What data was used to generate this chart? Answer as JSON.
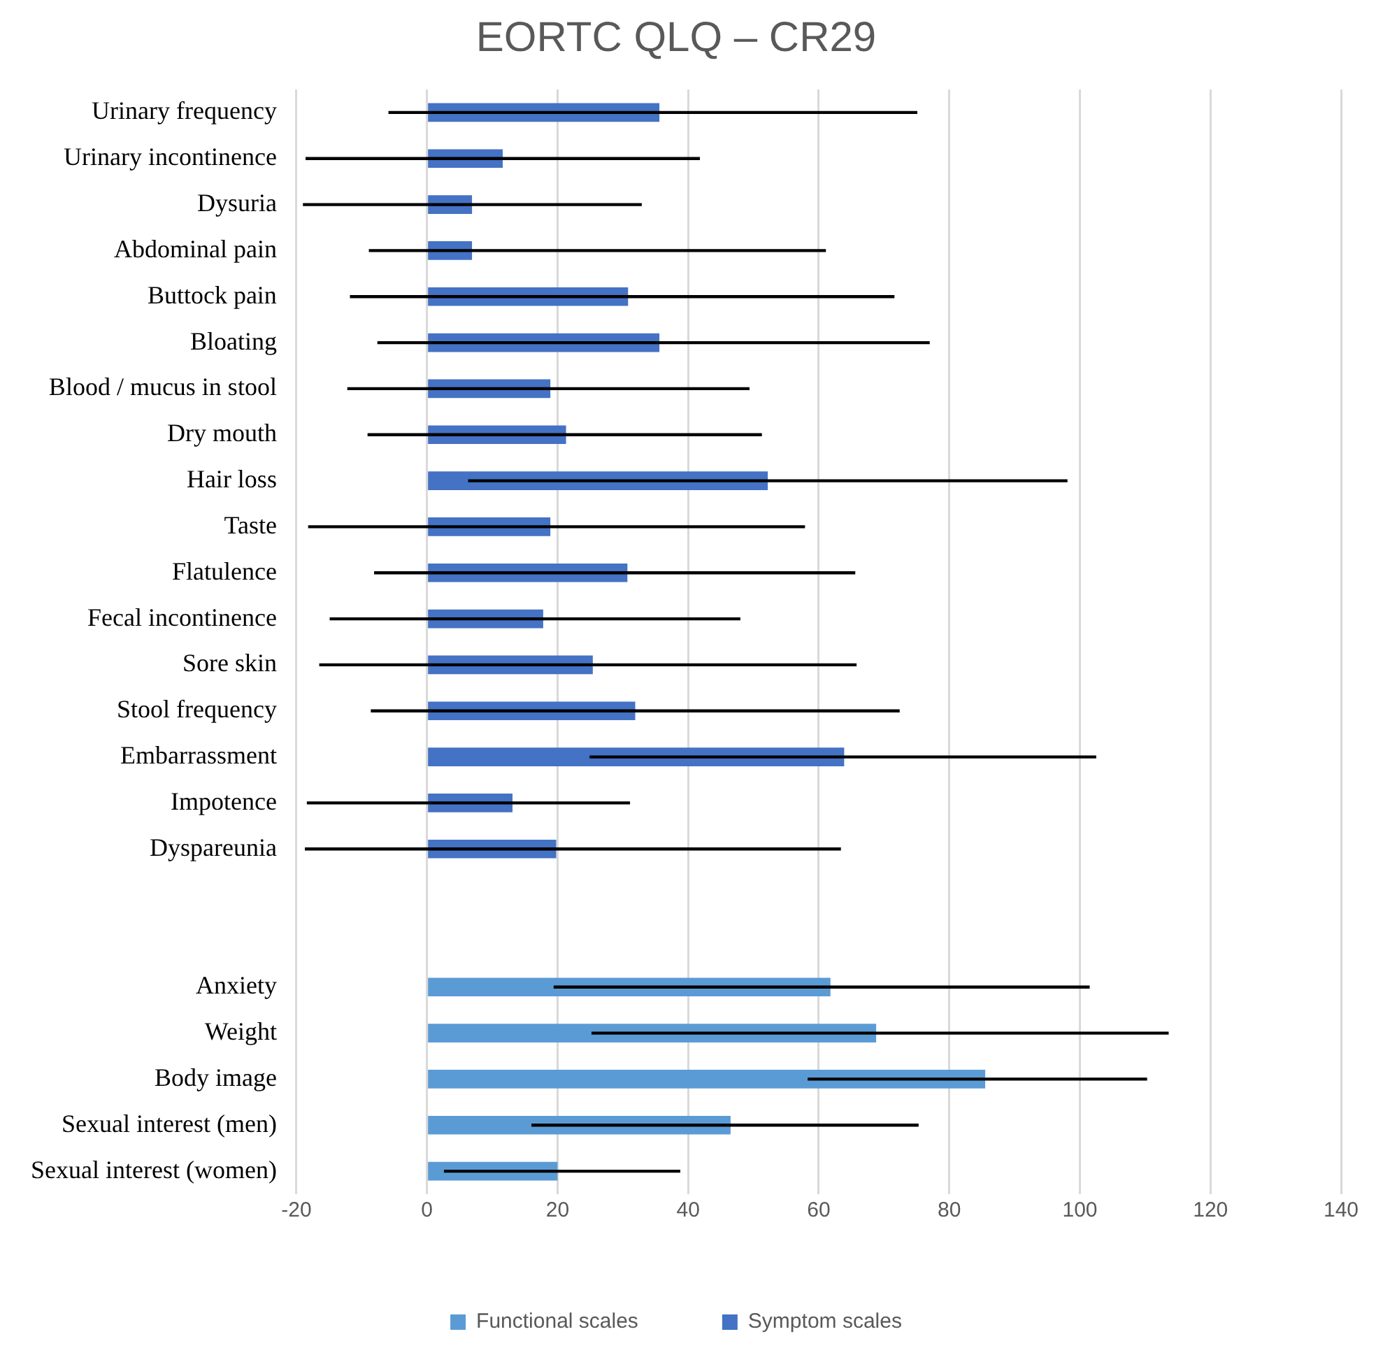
{
  "chart_data": {
    "type": "bar",
    "orientation": "horizontal",
    "title": "EORTC QLQ – CR29",
    "categories": [
      "Urinary frequency",
      "Urinary incontinence",
      "Dysuria",
      "Abdominal pain",
      "Buttock pain",
      "Bloating",
      "Blood / mucus in stool",
      "Dry mouth",
      "Hair loss",
      "Taste",
      "Flatulence",
      "Fecal incontinence",
      "Sore skin",
      "Stool frequency",
      "Embarrassment",
      "Impotence",
      "Dyspareunia",
      null,
      null,
      "Anxiety",
      "Weight",
      "Body image",
      "Sexual interest (men)",
      "Sexual interest (women)"
    ],
    "series": [
      {
        "name": "Functional scales",
        "color": "#5b9bd5",
        "values": [
          null,
          null,
          null,
          null,
          null,
          null,
          null,
          null,
          null,
          null,
          null,
          null,
          null,
          null,
          null,
          null,
          null,
          null,
          null,
          61.8,
          68.8,
          85.5,
          46.5,
          20.0
        ],
        "errors": [
          null,
          null,
          null,
          null,
          null,
          null,
          null,
          null,
          null,
          null,
          null,
          null,
          null,
          null,
          null,
          null,
          null,
          null,
          null,
          [
            19.4,
            101.5
          ],
          [
            25.2,
            113.6
          ],
          [
            58.3,
            110.3
          ],
          [
            16.0,
            75.3
          ],
          [
            2.6,
            38.8
          ]
        ]
      },
      {
        "name": "Symptom scales",
        "color": "#4472c4",
        "values": [
          35.6,
          11.6,
          6.9,
          6.9,
          30.8,
          35.6,
          18.9,
          21.3,
          52.2,
          18.9,
          30.7,
          17.8,
          25.4,
          31.9,
          63.9,
          13.1,
          19.8,
          null,
          null,
          null,
          null,
          null,
          null,
          null
        ],
        "errors": [
          [
            -5.9,
            75.1
          ],
          [
            -18.6,
            41.8
          ],
          [
            -19.0,
            32.9
          ],
          [
            -8.9,
            61.1
          ],
          [
            -11.8,
            71.6
          ],
          [
            -7.6,
            77.0
          ],
          [
            -12.2,
            49.4
          ],
          [
            -9.1,
            51.3
          ],
          [
            6.3,
            98.1
          ],
          [
            -18.2,
            57.9
          ],
          [
            -8.1,
            65.6
          ],
          [
            -14.9,
            48.0
          ],
          [
            -16.5,
            65.8
          ],
          [
            -8.6,
            72.4
          ],
          [
            24.9,
            102.5
          ],
          [
            -18.4,
            31.1
          ],
          [
            -18.7,
            63.4
          ],
          null,
          null,
          null,
          null,
          null,
          null,
          null
        ]
      }
    ],
    "xlim": [
      -20,
      140
    ],
    "xticks": [
      -20,
      0,
      20,
      40,
      60,
      80,
      100,
      120,
      140
    ],
    "grid": "x",
    "legend": "bottom"
  }
}
